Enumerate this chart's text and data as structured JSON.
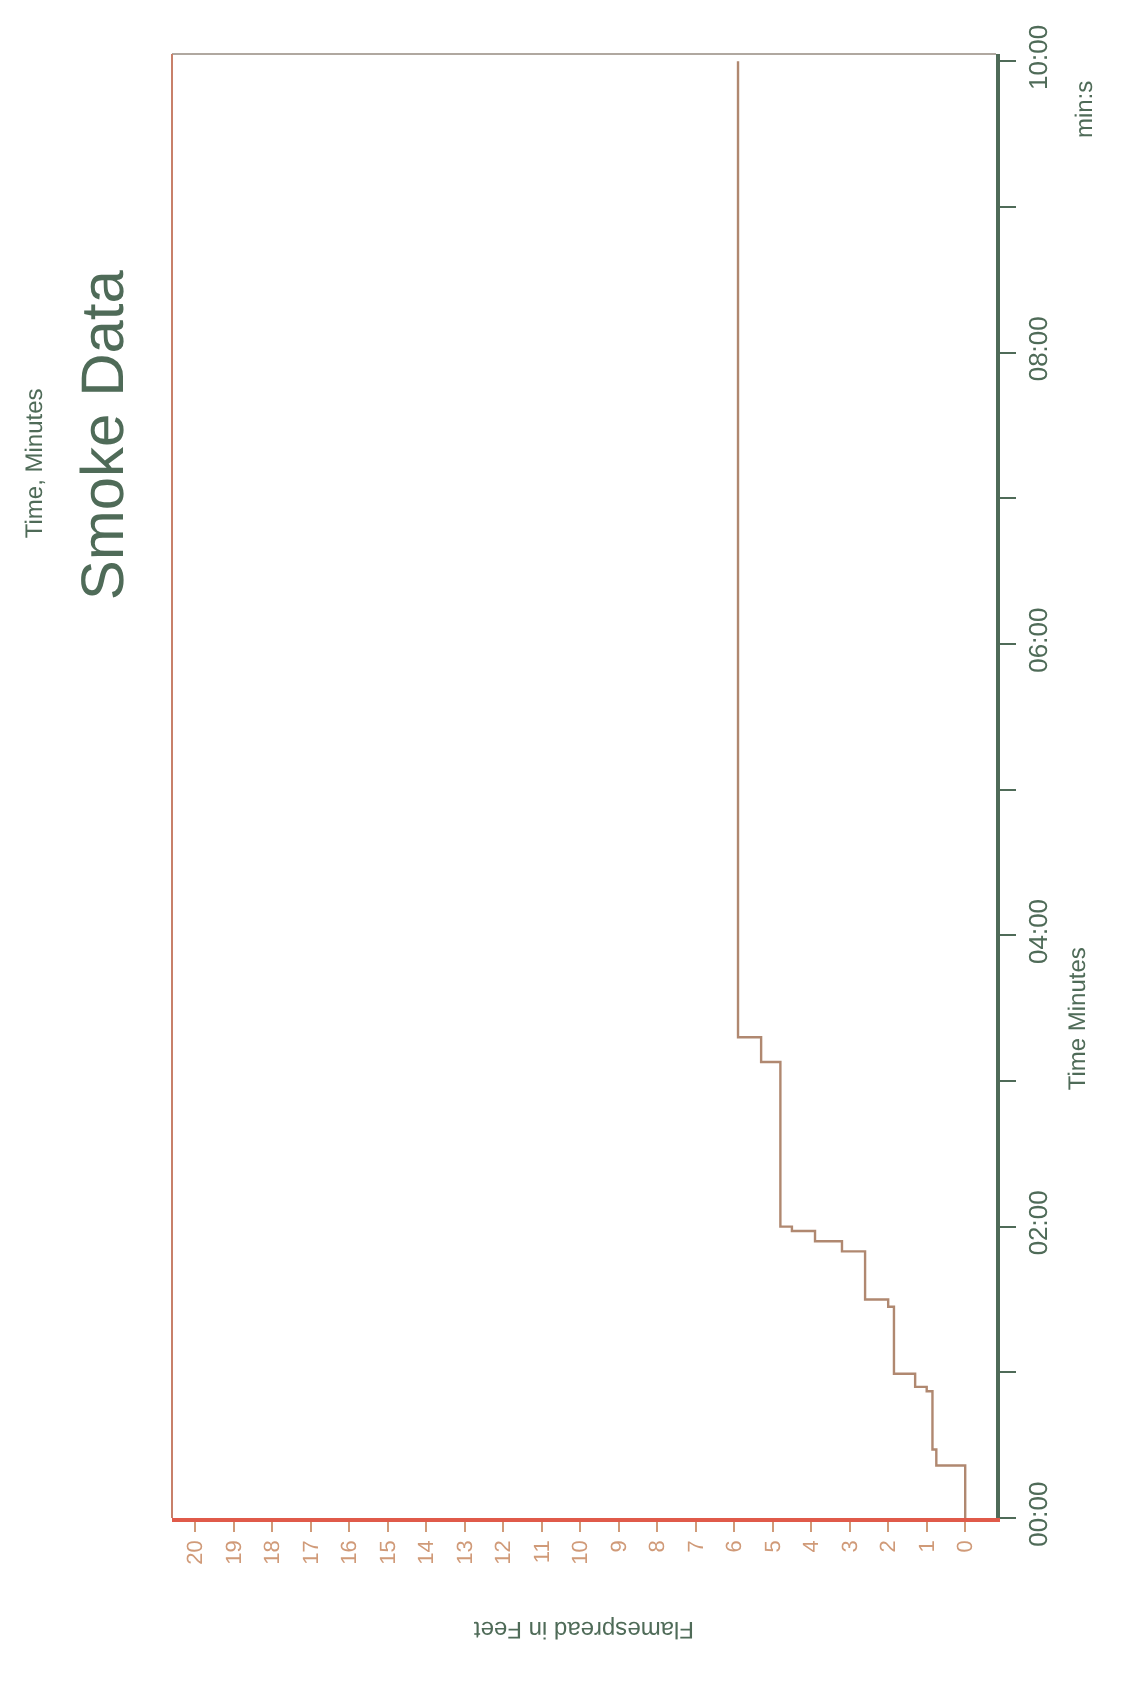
{
  "chart_data": {
    "type": "step",
    "title": "Smoke Data",
    "subtitle": "Time, Minutes",
    "xlabel": "Flamespread in Feet",
    "ylabel": "Time Minutes",
    "annotations": [
      "min:s"
    ],
    "x": [
      0,
      0.75,
      0.85,
      1.0,
      1.3,
      1.85,
      2.0,
      2.6,
      3.2,
      3.9,
      4.5,
      4.8,
      5.3,
      5.9,
      5.9
    ],
    "series": [
      {
        "color": "#b08870",
        "values": [
          0,
          0.36,
          0.47,
          0.87,
          0.9,
          0.99,
          1.45,
          1.5,
          1.83,
          1.9,
          1.97,
          2.0,
          3.13,
          3.3,
          10
        ]
      }
    ],
    "xlim": [
      20.6,
      -0.8
    ],
    "xticks": [
      0,
      1,
      2,
      3,
      4,
      5,
      6,
      7,
      8,
      9,
      10,
      11,
      12,
      13,
      14,
      15,
      16,
      17,
      18,
      19,
      20
    ],
    "ylim": [
      0,
      10.05
    ],
    "yticks": [
      {
        "value": 0,
        "label": "00:00"
      },
      {
        "value": 1,
        "label": null
      },
      {
        "value": 2,
        "label": "02:00"
      },
      {
        "value": 3,
        "label": null
      },
      {
        "value": 4,
        "label": "04:00"
      },
      {
        "value": 5,
        "label": null
      },
      {
        "value": 6,
        "label": "06:00"
      },
      {
        "value": 7,
        "label": null
      },
      {
        "value": 8,
        "label": "08:00"
      },
      {
        "value": 9,
        "label": null
      },
      {
        "value": 10,
        "label": "10:00"
      }
    ],
    "grid": false,
    "legend": false,
    "marker": "none",
    "line_style": "solid"
  }
}
